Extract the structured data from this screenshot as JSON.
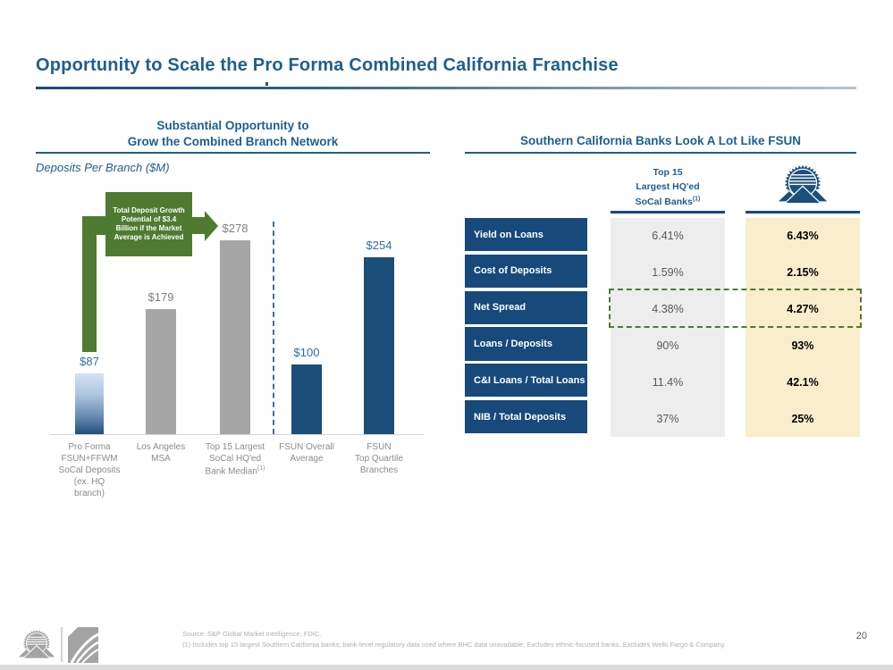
{
  "slide": {
    "title": "Opportunity to Scale the Pro Forma Combined California Franchise",
    "page_number": "20",
    "source_line": "Source: S&P Global Market Intelligence; FDIC.",
    "footnote_line": "(1) Includes top 15 largest Southern California banks; bank-level regulatory data used where BHC data unavailable; Excludes ethnic-focused banks. Excludes Wells Fargo & Company."
  },
  "left_panel": {
    "heading_line1": "Substantial Opportunity to",
    "heading_line2": "Grow the Combined Branch Network",
    "subtitle": "Deposits Per Branch ($M)",
    "callout_text": "Total Deposit Growth Potential of $3.4 Billion if the Market Average is Achieved"
  },
  "chart_data": {
    "type": "bar",
    "title": "Deposits Per Branch ($M)",
    "categories": [
      [
        "Pro Forma",
        "FSUN+FFWM",
        "SoCal Deposits",
        "(ex. HQ",
        "branch)"
      ],
      [
        "Los Angeles",
        "MSA"
      ],
      [
        "Top 15 Largest",
        "SoCal HQ'ed",
        "Bank Median(1)"
      ],
      [
        "FSUN Overall",
        "Average"
      ],
      [
        "FSUN",
        "Top Quartile",
        "Branches"
      ]
    ],
    "values": [
      87,
      179,
      278,
      100,
      254
    ],
    "data_labels": [
      "$87",
      "$179",
      "$278",
      "$100",
      "$254"
    ],
    "bar_styles": [
      "gradient-blue",
      "gray",
      "gray",
      "navy",
      "navy"
    ],
    "label_styles": [
      "blue",
      "gray",
      "gray",
      "blue",
      "blue"
    ],
    "ylim": [
      0,
      300
    ],
    "grid": false,
    "separator_after_index": 2,
    "annotation": "Total Deposit Growth Potential of $3.4 Billion if the Market Average is Achieved"
  },
  "right_panel": {
    "heading": "Southern California Banks Look A Lot Like FSUN",
    "col_socal_header_lines": [
      "Top 15",
      "Largest HQ'ed",
      "SoCal Banks(1)"
    ],
    "fsun_logo_name": "fsun-seal-logo",
    "table_rows": [
      {
        "label": "Yield on Loans",
        "socal": "6.41%",
        "fsun": "6.43%",
        "highlighted": false
      },
      {
        "label": "Cost of Deposits",
        "socal": "1.59%",
        "fsun": "2.15%",
        "highlighted": false
      },
      {
        "label": "Net Spread",
        "socal": "4.38%",
        "fsun": "4.27%",
        "highlighted": true
      },
      {
        "label": "Loans / Deposits",
        "socal": "90%",
        "fsun": "93%",
        "highlighted": false
      },
      {
        "label": "C&I Loans / Total Loans",
        "socal": "11.4%",
        "fsun": "42.1%",
        "highlighted": false
      },
      {
        "label": "NIB / Total Deposits",
        "socal": "37%",
        "fsun": "25%",
        "highlighted": false
      }
    ]
  },
  "colors": {
    "navy": "#17497B",
    "heading_blue": "#1D5F90",
    "bar_gray": "#A6A6A6",
    "bar_navy": "#1B4E79",
    "annotation_green": "#4E7B31",
    "fsun_column_cream": "#FAEDCB",
    "socal_column_gray": "#EDEDED",
    "separator_dashed_blue": "#2E74B5"
  }
}
